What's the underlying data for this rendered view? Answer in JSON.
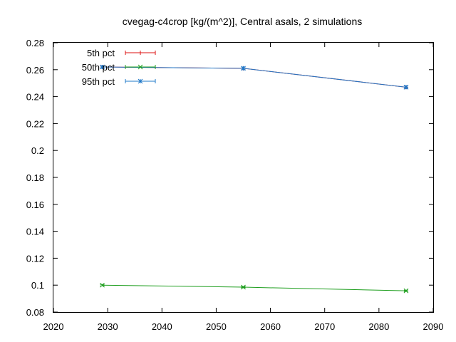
{
  "chart_data": {
    "type": "line",
    "title": "cvegag-c4crop [kg/(m^2)], Central asals, 2 simulations",
    "xlabel": "",
    "ylabel": "",
    "xlim": [
      2020,
      2090
    ],
    "ylim": [
      0.08,
      0.28
    ],
    "x_ticks": [
      2020,
      2030,
      2040,
      2050,
      2060,
      2070,
      2080,
      2090
    ],
    "y_ticks": [
      0.08,
      0.1,
      0.12,
      0.14,
      0.16,
      0.18,
      0.2,
      0.22,
      0.24,
      0.26,
      0.28
    ],
    "x_tick_labels": [
      "2020",
      "2030",
      "2040",
      "2050",
      "2060",
      "2070",
      "2080",
      "2090"
    ],
    "y_tick_labels": [
      "0.08",
      "0.1",
      "0.12",
      "0.14",
      "0.16",
      "0.18",
      "0.2",
      "0.22",
      "0.24",
      "0.26",
      "0.28"
    ],
    "grid": false,
    "legend_position": "top-left",
    "x": [
      2029,
      2055,
      2085
    ],
    "series": [
      {
        "name": "5th pct",
        "color": "#dd1111",
        "marker": "plus",
        "values": [
          0.262,
          0.261,
          0.247
        ],
        "err_low": [
          0.001,
          0.001,
          0.001
        ],
        "err_high": [
          0.001,
          0.001,
          0.001
        ]
      },
      {
        "name": "50th pct",
        "color": "#1e9e1e",
        "marker": "cross",
        "values": [
          0.1,
          0.0985,
          0.0958
        ],
        "err_low": [
          0.0005,
          0.0005,
          0.0005
        ],
        "err_high": [
          0.0005,
          0.0005,
          0.0005
        ]
      },
      {
        "name": "95th pct",
        "color": "#1f78c8",
        "marker": "star",
        "values": [
          0.262,
          0.261,
          0.247
        ],
        "err_low": [
          0.001,
          0.001,
          0.001
        ],
        "err_high": [
          0.001,
          0.001,
          0.001
        ]
      }
    ]
  }
}
